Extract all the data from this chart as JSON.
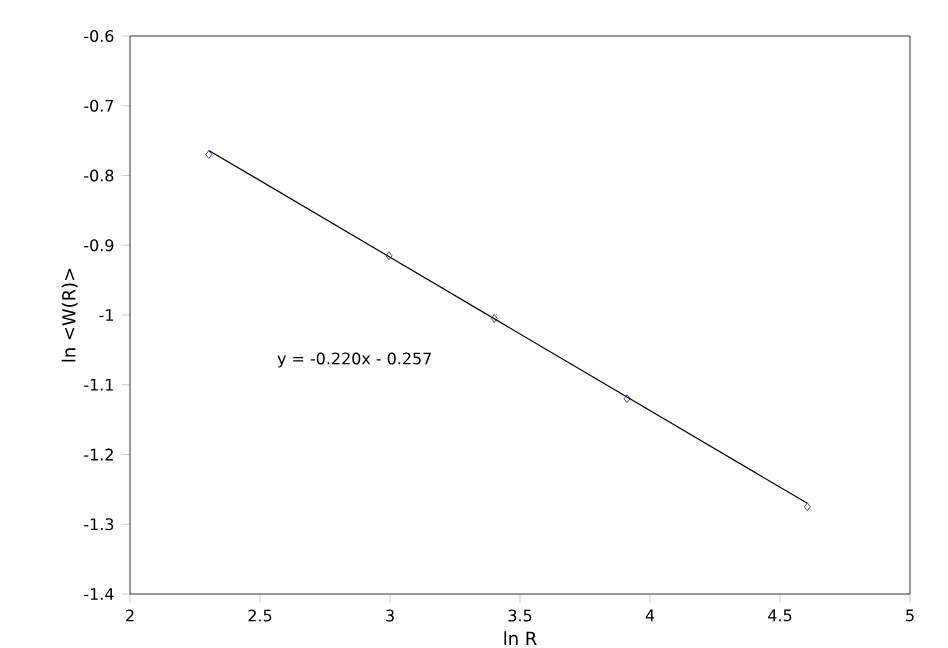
{
  "chart_data": {
    "type": "scatter",
    "xlabel": "ln R",
    "ylabel": "ln <W(R)>",
    "xlim": [
      2,
      5
    ],
    "ylim": [
      -1.4,
      -0.6
    ],
    "xticks": [
      2,
      2.5,
      3,
      3.5,
      4,
      4.5,
      5
    ],
    "yticks": [
      -1.4,
      -1.3,
      -1.2,
      -1.1,
      -1,
      -0.9,
      -0.8,
      -0.7,
      -0.6
    ],
    "series": [
      {
        "color": "#1f1f8f",
        "marker": "diamond",
        "x": [
          2.303,
          2.996,
          3.401,
          3.912,
          4.605
        ],
        "values": [
          -0.77,
          -0.915,
          -1.005,
          -1.12,
          -1.275
        ]
      },
      {
        "type": "line",
        "marker": "none",
        "color": "#000000",
        "x": [
          2.303,
          4.605
        ],
        "values": [
          -0.764,
          -1.27
        ]
      }
    ],
    "annotations": [
      "y = -0.220x - 0.257"
    ]
  }
}
